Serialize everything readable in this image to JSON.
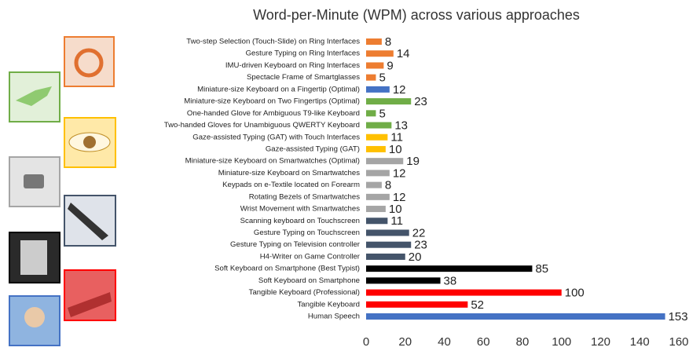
{
  "chart_data": {
    "type": "barh",
    "title": "Word-per-Minute (WPM) across various approaches",
    "categories": [
      "Two-step Selection (Touch-Slide) on Ring Interfaces",
      "Gesture Typing on Ring Interfaces",
      "IMU-driven Keyboard on Ring Interfaces",
      "Spectacle Frame of Smartglasses",
      "Miniature-size Keyboard on a Fingertip (Optimal)",
      "Miniature-size Keyboard on Two Fingertips (Optimal)",
      "One-handed Glove for Ambiguous T9-like Keyboard",
      "Two-handed Gloves for Unambiguous QWERTY Keyboard",
      "Gaze-assisted Typing (GAT) with Touch Interfaces",
      "Gaze-assisted Typing (GAT)",
      "Miniature-size Keyboard on Smartwatches (Optimal)",
      "Miniature-size Keyboard on Smartwatches",
      "Keypads on e-Textile located on Forearm",
      "Rotating Bezels of Smartwatches",
      "Wrist Movement with Smartwatches",
      "Scanning keyboard on Touchscreen",
      "Gesture Typing on Touchscreen",
      "Gesture Typing on Television controller",
      "H4-Writer on Game Controller",
      "Soft Keyboard on Smartphone (Best Typist)",
      "Soft Keyboard on Smartphone",
      "Tangible Keyboard (Professional)",
      "Tangible Keyboard",
      "Human Speech"
    ],
    "values": [
      8,
      14,
      9,
      5,
      12,
      23,
      5,
      13,
      11,
      10,
      19,
      12,
      8,
      12,
      10,
      11,
      22,
      23,
      20,
      85,
      38,
      100,
      52,
      153
    ],
    "colors": [
      "#ed7d31",
      "#ed7d31",
      "#ed7d31",
      "#ed7d31",
      "#4472c4",
      "#70ad47",
      "#70ad47",
      "#70ad47",
      "#ffc000",
      "#ffc000",
      "#a5a5a5",
      "#a5a5a5",
      "#a5a5a5",
      "#a5a5a5",
      "#a5a5a5",
      "#44546a",
      "#44546a",
      "#44546a",
      "#44546a",
      "#000000",
      "#000000",
      "#ff0000",
      "#ff0000",
      "#4472c4"
    ],
    "xlim": [
      0,
      160
    ],
    "xticks": [
      0,
      20,
      40,
      60,
      80,
      100,
      120,
      140,
      160
    ],
    "grid": false
  }
}
